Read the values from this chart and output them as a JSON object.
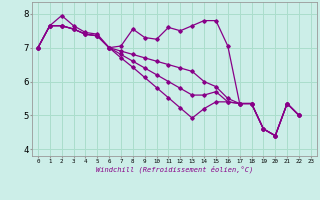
{
  "xlabel": "Windchill (Refroidissement éolien,°C)",
  "background_color": "#cceee8",
  "line_color": "#880088",
  "grid_color": "#aaddcc",
  "xlim": [
    -0.5,
    23.5
  ],
  "ylim": [
    3.8,
    8.35
  ],
  "yticks": [
    4,
    5,
    6,
    7,
    8
  ],
  "xticks": [
    0,
    1,
    2,
    3,
    4,
    5,
    6,
    7,
    8,
    9,
    10,
    11,
    12,
    13,
    14,
    15,
    16,
    17,
    18,
    19,
    20,
    21,
    22,
    23
  ],
  "line1_x": [
    0,
    1,
    2,
    3,
    4,
    5,
    6,
    7,
    8,
    9,
    10,
    11,
    12,
    13,
    14,
    15,
    16,
    17,
    18,
    19,
    20,
    21,
    22
  ],
  "line1_y": [
    7.0,
    7.65,
    7.95,
    7.65,
    7.45,
    7.4,
    7.0,
    7.05,
    7.55,
    7.3,
    7.25,
    7.6,
    7.5,
    7.65,
    7.8,
    7.8,
    7.05,
    5.35,
    5.35,
    4.6,
    4.4,
    5.35,
    5.0
  ],
  "line2_x": [
    0,
    1,
    2,
    3,
    4,
    5,
    6,
    7,
    8,
    9,
    10,
    11,
    12,
    13,
    14,
    15,
    16,
    17,
    18,
    19,
    20,
    21,
    22
  ],
  "line2_y": [
    7.0,
    7.65,
    7.65,
    7.55,
    7.4,
    7.35,
    7.0,
    6.7,
    6.42,
    6.12,
    5.82,
    5.52,
    5.22,
    4.92,
    5.2,
    5.4,
    5.4,
    5.35,
    5.35,
    4.6,
    4.4,
    5.35,
    5.0
  ],
  "line3_x": [
    0,
    1,
    2,
    3,
    4,
    5,
    6,
    7,
    8,
    9,
    10,
    11,
    12,
    13,
    14,
    15,
    16,
    17,
    18,
    19,
    20,
    21,
    22
  ],
  "line3_y": [
    7.0,
    7.65,
    7.65,
    7.55,
    7.4,
    7.35,
    7.0,
    6.8,
    6.6,
    6.4,
    6.2,
    6.0,
    5.8,
    5.6,
    5.6,
    5.7,
    5.4,
    5.35,
    5.35,
    4.6,
    4.4,
    5.35,
    5.0
  ],
  "line4_x": [
    0,
    1,
    2,
    3,
    4,
    5,
    6,
    7,
    8,
    9,
    10,
    11,
    12,
    13,
    14,
    15,
    16,
    17,
    18,
    19,
    20,
    21,
    22
  ],
  "line4_y": [
    7.0,
    7.65,
    7.65,
    7.55,
    7.4,
    7.35,
    7.0,
    6.9,
    6.8,
    6.7,
    6.6,
    6.5,
    6.4,
    6.3,
    6.0,
    5.85,
    5.5,
    5.35,
    5.35,
    4.6,
    4.4,
    5.35,
    5.0
  ]
}
